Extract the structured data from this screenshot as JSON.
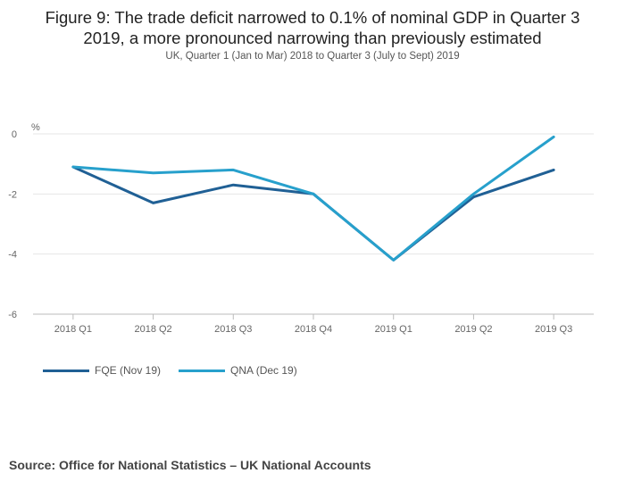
{
  "title_lines": [
    "Figure 9: The trade deficit narrowed to 0.1% of nominal GDP in Quarter 3",
    "2019, a more pronounced narrowing than previously estimated"
  ],
  "subtitle": "UK, Quarter 1 (Jan to Mar) 2018 to Quarter 3 (July to Sept) 2019",
  "source": "Source: Office for National Statistics – UK National Accounts",
  "chart_data": {
    "type": "line",
    "title": "Figure 9: The trade deficit narrowed to 0.1% of nominal GDP in Quarter 3 2019, a more pronounced narrowing than previously estimated",
    "subtitle": "UK, Quarter 1 (Jan to Mar) 2018 to Quarter 3 (July to Sept) 2019",
    "xlabel": "",
    "ylabel": "%",
    "ylim": [
      -6,
      0
    ],
    "yticks": [
      "0",
      "-2",
      "-4",
      "-6"
    ],
    "ytick_values": [
      0,
      -2,
      -4,
      -6
    ],
    "grid": true,
    "legend_position": "bottom-left",
    "categories": [
      "2018 Q1",
      "2018 Q2",
      "2018 Q3",
      "2018 Q4",
      "2019 Q1",
      "2019 Q2",
      "2019 Q3"
    ],
    "series": [
      {
        "name": "FQE (Nov 19)",
        "color": "#206095",
        "values": [
          -1.1,
          -2.3,
          -1.7,
          -2.0,
          -4.2,
          -2.1,
          -1.2
        ]
      },
      {
        "name": "QNA (Dec 19)",
        "color": "#27a0cc",
        "values": [
          -1.1,
          -1.3,
          -1.2,
          -2.0,
          -4.2,
          -2.0,
          -0.1
        ]
      }
    ]
  }
}
